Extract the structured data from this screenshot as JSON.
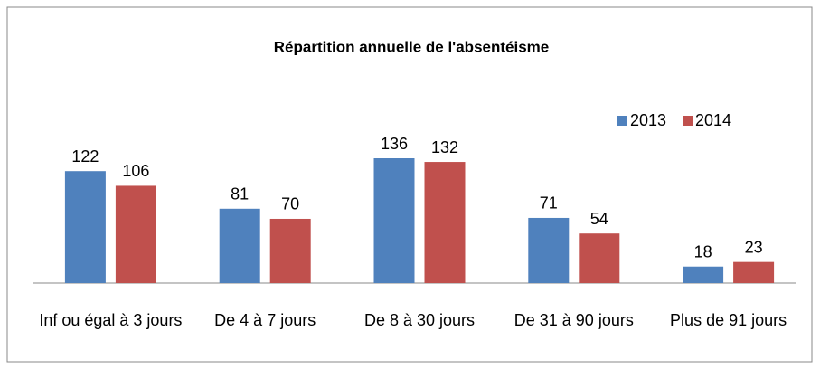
{
  "chart_data": {
    "type": "bar",
    "title": "Répartition annuelle de l'absentéisme",
    "categories": [
      "Inf ou égal à 3 jours",
      "De 4 à 7 jours",
      "De 8 à 30 jours",
      "De 31 à 90 jours",
      "Plus de 91 jours"
    ],
    "series": [
      {
        "name": "2013",
        "color": "#4f81bd",
        "values": [
          122,
          81,
          136,
          71,
          18
        ]
      },
      {
        "name": "2014",
        "color": "#c0504d",
        "values": [
          106,
          70,
          132,
          54,
          23
        ]
      }
    ],
    "legend": "top-right"
  }
}
